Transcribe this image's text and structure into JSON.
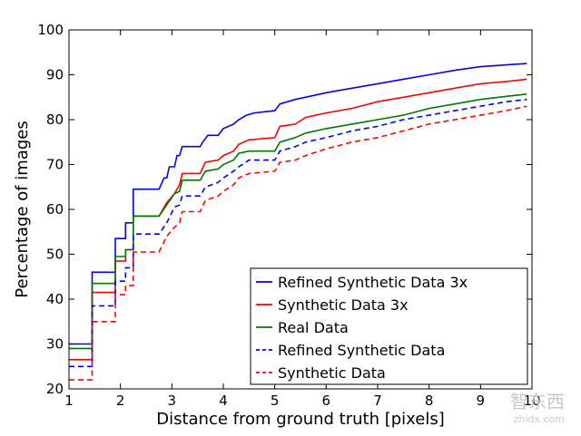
{
  "chart_data": {
    "type": "line",
    "xlabel": "Distance from ground truth [pixels]",
    "ylabel": "Percentage of images",
    "xlim": [
      1,
      10
    ],
    "ylim": [
      20,
      100
    ],
    "xticks": [
      1,
      2,
      3,
      4,
      5,
      6,
      7,
      8,
      9,
      10
    ],
    "yticks": [
      20,
      30,
      40,
      50,
      60,
      70,
      80,
      90,
      100
    ],
    "grid": false,
    "legend_position": "bottom-right",
    "series": [
      {
        "name": "Refined Synthetic Data 3x",
        "color": "#0000ff",
        "dash": "solid",
        "points": [
          [
            1,
            30
          ],
          [
            1.45,
            30
          ],
          [
            1.45,
            46
          ],
          [
            1.9,
            46
          ],
          [
            1.9,
            53.5
          ],
          [
            2.1,
            53.5
          ],
          [
            2.1,
            57
          ],
          [
            2.25,
            57
          ],
          [
            2.25,
            64.5
          ],
          [
            2.75,
            64.5
          ],
          [
            2.85,
            67
          ],
          [
            2.9,
            67
          ],
          [
            2.95,
            69.5
          ],
          [
            3.05,
            69.5
          ],
          [
            3.1,
            72
          ],
          [
            3.15,
            72
          ],
          [
            3.2,
            74
          ],
          [
            3.55,
            74
          ],
          [
            3.6,
            75
          ],
          [
            3.7,
            76.5
          ],
          [
            3.9,
            76.5
          ],
          [
            4,
            78
          ],
          [
            4.2,
            79
          ],
          [
            4.3,
            80
          ],
          [
            4.45,
            81
          ],
          [
            4.6,
            81.5
          ],
          [
            5,
            82
          ],
          [
            5.1,
            83.5
          ],
          [
            5.4,
            84.5
          ],
          [
            5.8,
            85.5
          ],
          [
            6,
            86
          ],
          [
            6.5,
            87
          ],
          [
            7,
            88
          ],
          [
            7.5,
            89
          ],
          [
            8,
            90
          ],
          [
            8.5,
            91
          ],
          [
            9,
            91.8
          ],
          [
            9.5,
            92.2
          ],
          [
            9.9,
            92.5
          ]
        ]
      },
      {
        "name": "Synthetic Data 3x",
        "color": "#ff0000",
        "dash": "solid",
        "points": [
          [
            1,
            26.5
          ],
          [
            1.45,
            26.5
          ],
          [
            1.45,
            41.5
          ],
          [
            1.9,
            41.5
          ],
          [
            1.9,
            48.5
          ],
          [
            2.1,
            48.5
          ],
          [
            2.1,
            51
          ],
          [
            2.25,
            51
          ],
          [
            2.25,
            58.5
          ],
          [
            2.75,
            58.5
          ],
          [
            2.9,
            61.5
          ],
          [
            3.05,
            63.5
          ],
          [
            3.15,
            65.5
          ],
          [
            3.2,
            68
          ],
          [
            3.55,
            68
          ],
          [
            3.65,
            70.5
          ],
          [
            3.9,
            71
          ],
          [
            4,
            72
          ],
          [
            4.2,
            73
          ],
          [
            4.3,
            74.5
          ],
          [
            4.5,
            75.5
          ],
          [
            5,
            76
          ],
          [
            5.1,
            78.5
          ],
          [
            5.4,
            79
          ],
          [
            5.6,
            80.5
          ],
          [
            6,
            81.5
          ],
          [
            6.5,
            82.5
          ],
          [
            7,
            84
          ],
          [
            7.5,
            85
          ],
          [
            8,
            86
          ],
          [
            8.5,
            87
          ],
          [
            9,
            88
          ],
          [
            9.5,
            88.5
          ],
          [
            9.9,
            89
          ]
        ]
      },
      {
        "name": "Real Data",
        "color": "#007700",
        "dash": "solid",
        "points": [
          [
            1,
            29
          ],
          [
            1.45,
            29
          ],
          [
            1.45,
            43.5
          ],
          [
            1.9,
            43.5
          ],
          [
            1.9,
            49.5
          ],
          [
            2.1,
            49.5
          ],
          [
            2.1,
            51
          ],
          [
            2.25,
            51
          ],
          [
            2.25,
            58.5
          ],
          [
            2.75,
            58.5
          ],
          [
            2.9,
            61
          ],
          [
            3.05,
            63.5
          ],
          [
            3.15,
            64
          ],
          [
            3.2,
            66.5
          ],
          [
            3.55,
            66.5
          ],
          [
            3.65,
            68.5
          ],
          [
            3.9,
            69
          ],
          [
            4,
            70
          ],
          [
            4.2,
            71
          ],
          [
            4.3,
            72.5
          ],
          [
            4.5,
            73
          ],
          [
            5,
            73
          ],
          [
            5.1,
            75
          ],
          [
            5.4,
            76
          ],
          [
            5.6,
            77
          ],
          [
            6,
            78
          ],
          [
            6.5,
            79
          ],
          [
            7,
            80
          ],
          [
            7.5,
            81
          ],
          [
            8,
            82.5
          ],
          [
            8.5,
            83.5
          ],
          [
            9,
            84.5
          ],
          [
            9.5,
            85.2
          ],
          [
            9.9,
            85.7
          ]
        ]
      },
      {
        "name": "Refined Synthetic Data",
        "color": "#0000ff",
        "dash": "dashed",
        "points": [
          [
            1,
            25
          ],
          [
            1.45,
            25
          ],
          [
            1.45,
            38.5
          ],
          [
            1.9,
            38.5
          ],
          [
            1.9,
            44
          ],
          [
            2.1,
            44
          ],
          [
            2.1,
            47
          ],
          [
            2.25,
            47
          ],
          [
            2.25,
            54.5
          ],
          [
            2.75,
            54.5
          ],
          [
            2.9,
            57
          ],
          [
            3.05,
            60.5
          ],
          [
            3.15,
            61
          ],
          [
            3.2,
            63
          ],
          [
            3.55,
            63
          ],
          [
            3.65,
            65
          ],
          [
            3.9,
            66
          ],
          [
            4,
            67
          ],
          [
            4.2,
            68.5
          ],
          [
            4.3,
            69.5
          ],
          [
            4.5,
            71
          ],
          [
            5,
            71
          ],
          [
            5.1,
            73
          ],
          [
            5.4,
            74
          ],
          [
            5.6,
            75
          ],
          [
            6,
            76
          ],
          [
            6.5,
            77.5
          ],
          [
            7,
            78.5
          ],
          [
            7.5,
            80
          ],
          [
            8,
            81
          ],
          [
            8.5,
            82
          ],
          [
            9,
            83
          ],
          [
            9.5,
            84
          ],
          [
            9.9,
            84.5
          ]
        ]
      },
      {
        "name": "Synthetic Data",
        "color": "#ff0000",
        "dash": "dashed",
        "points": [
          [
            1,
            22
          ],
          [
            1.45,
            22
          ],
          [
            1.45,
            35
          ],
          [
            1.9,
            35
          ],
          [
            1.9,
            41
          ],
          [
            2.1,
            41
          ],
          [
            2.1,
            43
          ],
          [
            2.25,
            43
          ],
          [
            2.25,
            50.5
          ],
          [
            2.75,
            50.5
          ],
          [
            2.9,
            54
          ],
          [
            3.05,
            56
          ],
          [
            3.15,
            57
          ],
          [
            3.2,
            59.5
          ],
          [
            3.55,
            59.5
          ],
          [
            3.65,
            62
          ],
          [
            3.9,
            63
          ],
          [
            4,
            64
          ],
          [
            4.2,
            65.5
          ],
          [
            4.3,
            67
          ],
          [
            4.5,
            68
          ],
          [
            5,
            68.5
          ],
          [
            5.1,
            70.5
          ],
          [
            5.4,
            71
          ],
          [
            5.6,
            72
          ],
          [
            6,
            73.5
          ],
          [
            6.5,
            75
          ],
          [
            7,
            76
          ],
          [
            7.5,
            77.5
          ],
          [
            8,
            79
          ],
          [
            8.5,
            80
          ],
          [
            9,
            81
          ],
          [
            9.5,
            82
          ],
          [
            9.9,
            83
          ]
        ]
      }
    ]
  },
  "watermark": {
    "brand": "智东西",
    "url": "zhidx.com"
  }
}
